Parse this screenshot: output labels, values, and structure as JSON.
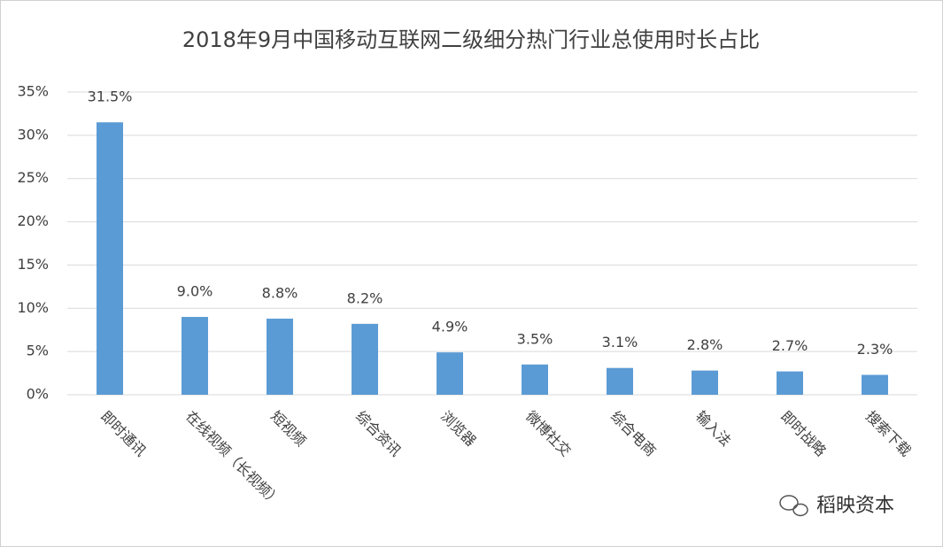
{
  "chart_data": {
    "type": "bar",
    "title": "2018年9月中国移动互联网二级细分热门行业总使用时长占比",
    "categories": [
      "即时通讯",
      "在线视频（长视频）",
      "短视频",
      "综合资讯",
      "浏览器",
      "微博社交",
      "综合电商",
      "输入法",
      "即时战略",
      "搜索下载"
    ],
    "values": [
      31.5,
      9.0,
      8.8,
      8.2,
      4.9,
      3.5,
      3.1,
      2.8,
      2.7,
      2.3
    ],
    "value_labels": [
      "31.5%",
      "9.0%",
      "8.8%",
      "8.2%",
      "4.9%",
      "3.5%",
      "3.1%",
      "2.8%",
      "2.7%",
      "2.3%"
    ],
    "color": "#5b9bd5",
    "ylim": [
      0,
      35
    ],
    "yticks": [
      {
        "value": 0,
        "label": "0%"
      },
      {
        "value": 5,
        "label": "5%"
      },
      {
        "value": 10,
        "label": "10%"
      },
      {
        "value": 15,
        "label": "15%"
      },
      {
        "value": 20,
        "label": "20%"
      },
      {
        "value": 25,
        "label": "25%"
      },
      {
        "value": 30,
        "label": "30%"
      },
      {
        "value": 35,
        "label": "35%"
      }
    ],
    "grid": true,
    "watermark": "稻映资本"
  }
}
